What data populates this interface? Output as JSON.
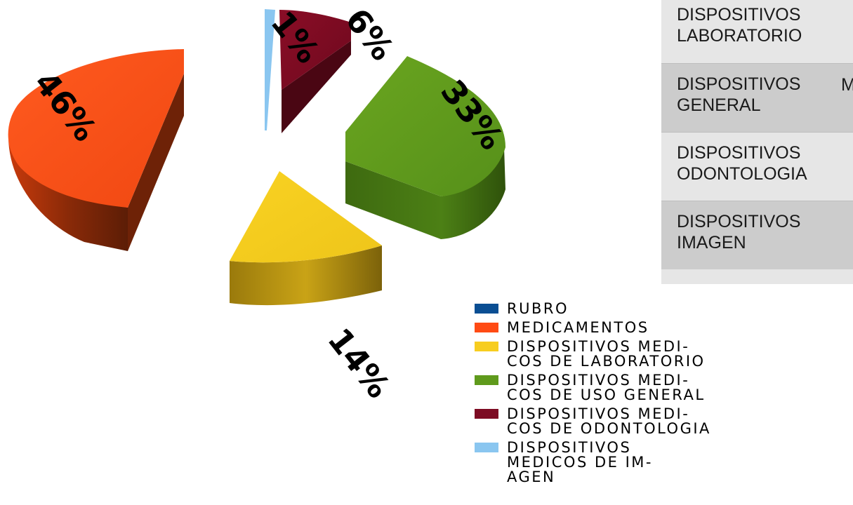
{
  "chart_data": {
    "type": "pie",
    "style": "3d-exploded",
    "categories": [
      "RUBRO",
      "MEDICAMENTOS",
      "DISPOSITIVOS MEDICOS DE LABORATORIO",
      "DISPOSITIVOS MEDICOS DE USO GENERAL",
      "DISPOSITIVOS MEDICOS DE ODONTOLOGIA",
      "DISPOSITIVOS MEDICOS DE IMAGEN"
    ],
    "values": [
      0,
      46,
      14,
      33,
      6,
      1
    ],
    "data_labels": [
      "",
      "46%",
      "14%",
      "33%",
      "6%",
      "1%"
    ],
    "colors": [
      "#0a4e93",
      "#ff4b14",
      "#f7cd1f",
      "#5f9a1c",
      "#7d0b23",
      "#8ac6f0"
    ],
    "legend": {
      "placement": "bottom-right",
      "items": [
        {
          "label": "RUBRO",
          "color": "#0a4e93"
        },
        {
          "label": "MEDICAMENTOS",
          "color": "#ff4b14"
        },
        {
          "label": "DISPOSITIVOS MEDI-\nCOS DE LABORATORIO",
          "color": "#f7cd1f"
        },
        {
          "label": "DISPOSITIVOS MEDI-\nCOS DE USO GENERAL",
          "color": "#5f9a1c"
        },
        {
          "label": "DISPOSITIVOS MEDI-\nCOS DE ODONTOLOGIA",
          "color": "#7d0b23"
        },
        {
          "label": "DISPOSITIVOS\nMEDICOS DE IM-\nAGEN",
          "color": "#8ac6f0"
        }
      ]
    }
  },
  "table": {
    "rows": [
      {
        "line1": "DISPOSITIVOS",
        "line2": "LABORATORIO"
      },
      {
        "line1": "DISPOSITIVOS",
        "line2": "GENERAL",
        "trail": "M"
      },
      {
        "line1": "DISPOSITIVOS",
        "line2": "ODONTOLOGIA"
      },
      {
        "line1": "DISPOSITIVOS",
        "line2": "IMAGEN"
      }
    ]
  }
}
